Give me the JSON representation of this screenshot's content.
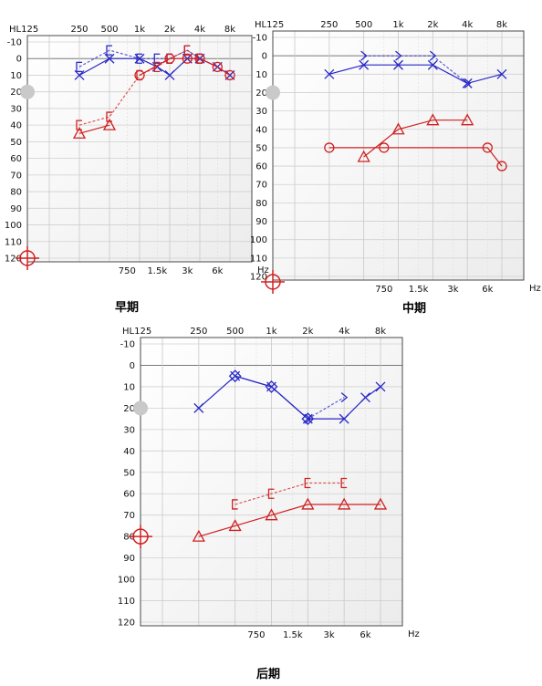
{
  "captions": [
    "早期",
    "中期",
    "后期"
  ],
  "chart_data": [
    {
      "type": "line",
      "caption": "早期",
      "y_axis_label": "HL",
      "unit": "Hz",
      "ylim": [
        -10,
        120
      ],
      "y_ticks": [
        "-10",
        "0",
        "10",
        "20",
        "30",
        "40",
        "50",
        "60",
        "70",
        "80",
        "90",
        "100",
        "110",
        "120"
      ],
      "x_top_ticks": [
        "125",
        "250",
        "500",
        "1k",
        "2k",
        "4k",
        "8k"
      ],
      "x_bottom_ticks": [
        "750",
        "1.5k",
        "3k",
        "6k"
      ],
      "series": [
        {
          "color": "#2828c8",
          "symbol": "cross",
          "style": "solid",
          "points": [
            [
              250,
              10
            ],
            [
              500,
              0
            ],
            [
              1000,
              0
            ],
            [
              1500,
              5
            ],
            [
              2000,
              10
            ],
            [
              3000,
              0
            ],
            [
              4000,
              0
            ],
            [
              6000,
              5
            ],
            [
              8000,
              10
            ]
          ]
        },
        {
          "color": "#2828c8",
          "symbol": "bracket",
          "style": "dotted",
          "points": [
            [
              250,
              5
            ],
            [
              500,
              -5
            ],
            [
              1000,
              0
            ],
            [
              1500,
              0
            ],
            [
              2000,
              0
            ],
            [
              3000,
              -5
            ],
            [
              4000,
              0
            ]
          ]
        },
        {
          "color": "#d02020",
          "symbol": "circle",
          "style": "solid",
          "points": [
            [
              1000,
              10
            ],
            [
              2000,
              0
            ],
            [
              3000,
              0
            ],
            [
              4000,
              0
            ],
            [
              6000,
              5
            ],
            [
              8000,
              10
            ]
          ]
        },
        {
          "color": "#d02020",
          "symbol": "triangle",
          "style": "solid",
          "points": [
            [
              250,
              45
            ],
            [
              500,
              40
            ]
          ]
        },
        {
          "color": "#d02020",
          "symbol": "bracket",
          "style": "dotted",
          "points": [
            [
              250,
              40
            ],
            [
              500,
              35
            ],
            [
              1000,
              10
            ],
            [
              1500,
              5
            ],
            [
              2000,
              0
            ],
            [
              3000,
              -5
            ],
            [
              4000,
              0
            ]
          ]
        }
      ]
    },
    {
      "type": "line",
      "caption": "中期",
      "y_axis_label": "HL",
      "unit": "Hz",
      "ylim": [
        -10,
        120
      ],
      "y_ticks": [
        "-10",
        "0",
        "10",
        "20",
        "30",
        "40",
        "50",
        "60",
        "70",
        "80",
        "90",
        "100",
        "110",
        "120"
      ],
      "x_top_ticks": [
        "125",
        "250",
        "500",
        "1k",
        "2k",
        "4k",
        "8k"
      ],
      "x_bottom_ticks": [
        "750",
        "1.5k",
        "3k",
        "6k"
      ],
      "series": [
        {
          "color": "#2828c8",
          "symbol": "cross",
          "style": "solid",
          "points": [
            [
              250,
              10
            ],
            [
              500,
              5
            ],
            [
              1000,
              5
            ],
            [
              2000,
              5
            ],
            [
              4000,
              15
            ],
            [
              8000,
              10
            ]
          ]
        },
        {
          "color": "#2828c8",
          "symbol": "chevron",
          "style": "dotted",
          "points": [
            [
              500,
              0
            ],
            [
              1000,
              0
            ],
            [
              2000,
              0
            ],
            [
              4000,
              15
            ]
          ]
        },
        {
          "color": "#d02020",
          "symbol": "circle",
          "style": "solid",
          "points": [
            [
              250,
              50
            ],
            [
              750,
              50
            ],
            [
              6000,
              50
            ],
            [
              8000,
              60
            ]
          ]
        },
        {
          "color": "#d02020",
          "symbol": "triangle",
          "style": "solid",
          "points": [
            [
              500,
              55
            ],
            [
              1000,
              40
            ],
            [
              2000,
              35
            ],
            [
              4000,
              35
            ]
          ]
        }
      ]
    },
    {
      "type": "line",
      "caption": "后期",
      "y_axis_label": "HL",
      "unit": "Hz",
      "ylim": [
        -10,
        120
      ],
      "y_ticks": [
        "-10",
        "0",
        "10",
        "20",
        "30",
        "40",
        "50",
        "60",
        "70",
        "80",
        "90",
        "100",
        "110",
        "120"
      ],
      "x_top_ticks": [
        "125",
        "250",
        "500",
        "1k",
        "2k",
        "4k",
        "8k"
      ],
      "x_bottom_ticks": [
        "750",
        "1.5k",
        "3k",
        "6k"
      ],
      "series": [
        {
          "color": "#2828c8",
          "symbol": "cross",
          "style": "solid",
          "points": [
            [
              250,
              20
            ],
            [
              500,
              5
            ],
            [
              1000,
              10
            ],
            [
              2000,
              25
            ],
            [
              4000,
              25
            ],
            [
              6000,
              15
            ],
            [
              8000,
              10
            ]
          ]
        },
        {
          "color": "#2828c8",
          "symbol": "diamond",
          "style": "solid",
          "points": [
            [
              500,
              5
            ],
            [
              1000,
              10
            ],
            [
              2000,
              25
            ]
          ]
        },
        {
          "color": "#2828c8",
          "symbol": "chevron",
          "style": "dotted",
          "points": [
            [
              2000,
              25
            ],
            [
              4000,
              15
            ]
          ]
        },
        {
          "color": "#d02020",
          "symbol": "triangle",
          "style": "solid",
          "points": [
            [
              250,
              80
            ],
            [
              500,
              75
            ],
            [
              1000,
              70
            ],
            [
              2000,
              65
            ],
            [
              4000,
              65
            ],
            [
              8000,
              65
            ]
          ]
        },
        {
          "color": "#d02020",
          "symbol": "bracket",
          "style": "dotted",
          "points": [
            [
              500,
              65
            ],
            [
              1000,
              60
            ],
            [
              2000,
              55
            ],
            [
              4000,
              55
            ]
          ]
        }
      ]
    }
  ]
}
